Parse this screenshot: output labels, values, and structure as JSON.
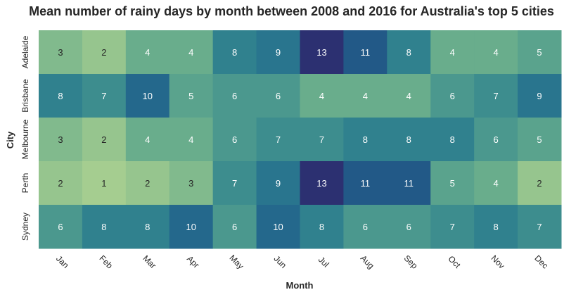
{
  "chart_data": {
    "type": "heatmap",
    "title": "Mean number of rainy days by month between 2008 and 2016 for Australia's top 5 cities",
    "xlabel": "Month",
    "ylabel": "City",
    "x_categories": [
      "Jan",
      "Feb",
      "Mar",
      "Apr",
      "May",
      "Jun",
      "Jul",
      "Aug",
      "Sep",
      "Oct",
      "Nov",
      "Dec"
    ],
    "y_categories": [
      "Adelaide",
      "Brisbane",
      "Melbourne",
      "Perth",
      "Sydney"
    ],
    "values": [
      [
        3,
        2,
        4,
        4,
        8,
        9,
        13,
        11,
        8,
        4,
        4,
        5
      ],
      [
        8,
        7,
        10,
        5,
        6,
        6,
        4,
        4,
        4,
        6,
        7,
        9
      ],
      [
        3,
        2,
        4,
        4,
        6,
        7,
        7,
        8,
        8,
        8,
        6,
        5
      ],
      [
        2,
        1,
        2,
        3,
        7,
        9,
        13,
        11,
        11,
        5,
        4,
        2
      ],
      [
        6,
        8,
        8,
        10,
        6,
        10,
        8,
        6,
        6,
        7,
        8,
        7
      ]
    ],
    "vmin": 1,
    "vmax": 13,
    "colormap": "crest",
    "colorbar": false,
    "grid": false
  }
}
